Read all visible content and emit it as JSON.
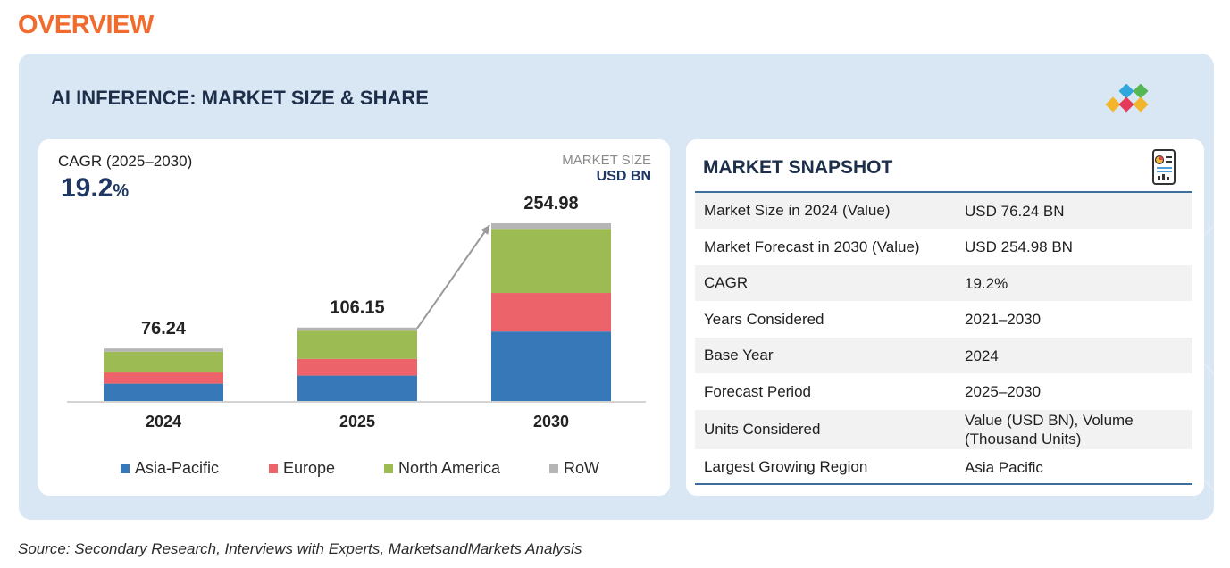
{
  "header": {
    "overview": "OVERVIEW"
  },
  "panel": {
    "title": "AI INFERENCE: MARKET SIZE & SHARE"
  },
  "colors": {
    "overview": "#f26b2e",
    "title": "#1d2f4a",
    "asia_pacific": "#3778b9",
    "europe": "#ed636a",
    "north_america": "#9dbb53",
    "row": "#b5b5b5",
    "arrow": "#999999",
    "logo": [
      "#f3b52a",
      "#30a6dc",
      "#e53b5a",
      "#55b654"
    ]
  },
  "chart_meta": {
    "cagr_label": "CAGR (2025–2030)",
    "cagr_number": "19.2",
    "cagr_pct": "%",
    "market_size_label": "MARKET SIZE",
    "market_size_unit": "USD BN"
  },
  "chart_data": {
    "type": "bar",
    "stacked": true,
    "title": "AI INFERENCE: MARKET SIZE & SHARE",
    "ylabel": "USD BN",
    "categories": [
      "2024",
      "2025",
      "2030"
    ],
    "totals": [
      76.24,
      106.15,
      254.98
    ],
    "total_labels": [
      "76.24",
      "106.15",
      "254.98"
    ],
    "series": [
      {
        "name": "Asia-Pacific",
        "values": [
          26.0,
          37.5,
          100.5
        ]
      },
      {
        "name": "Europe",
        "values": [
          16.0,
          24.0,
          55.0
        ]
      },
      {
        "name": "North America",
        "values": [
          29.7,
          40.2,
          91.5
        ]
      },
      {
        "name": "RoW",
        "values": [
          4.54,
          4.45,
          7.98
        ]
      }
    ],
    "ylim": [
      0,
      254.98
    ],
    "annotation": "arrow from 2025 bar top to 2030 bar top",
    "legend_position": "bottom"
  },
  "snapshot": {
    "title": "MARKET SNAPSHOT",
    "rows": [
      {
        "key": "Market Size in 2024 (Value)",
        "value": "USD 76.24 BN"
      },
      {
        "key": "Market Forecast in 2030 (Value)",
        "value": "USD 254.98 BN"
      },
      {
        "key": "CAGR",
        "value": "19.2%"
      },
      {
        "key": "Years Considered",
        "value": "2021–2030"
      },
      {
        "key": "Base Year",
        "value": "2024"
      },
      {
        "key": "Forecast Period",
        "value": "2025–2030"
      },
      {
        "key": "Units Considered",
        "value": "Value (USD BN), Volume (Thousand Units)"
      },
      {
        "key": "Largest Growing Region",
        "value": "Asia Pacific"
      }
    ]
  },
  "footer": {
    "source": "Source: Secondary Research, Interviews with Experts, MarketsandMarkets Analysis"
  }
}
